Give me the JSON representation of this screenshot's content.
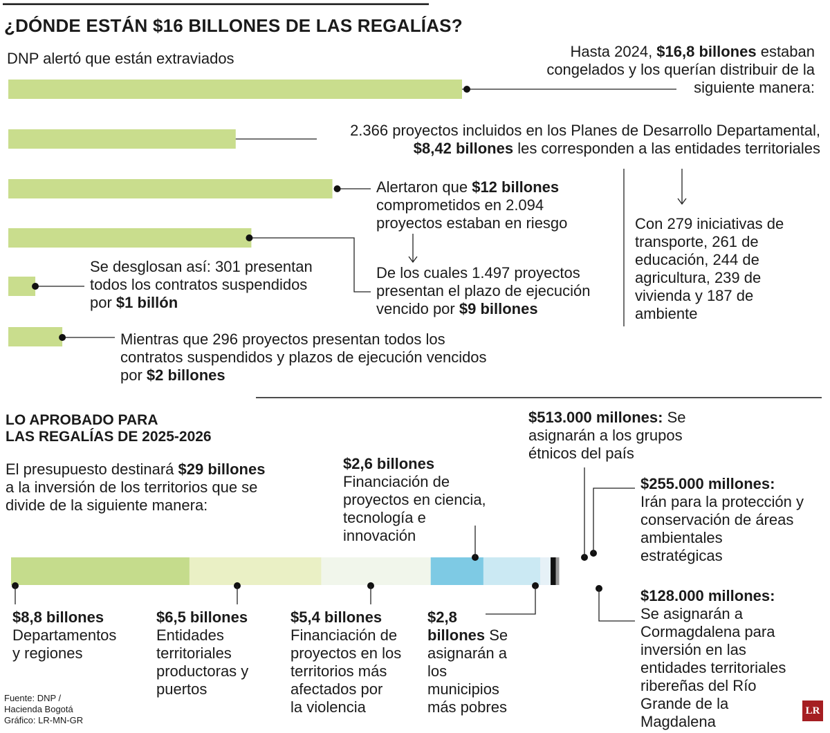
{
  "title": "¿DÓNDE ESTÁN $16 BILLONES DE LAS REGALÍAS?",
  "section1": {
    "subtitle": "DNP alertó que están extraviados",
    "bar_color": "#c9dd8d",
    "notes": {
      "congelados": [
        "Hasta 2024, ",
        "$16,8 billones",
        " estaban",
        "congelados y los querían distribuir de la",
        "siguiente manera:"
      ],
      "pdd": [
        "2.366 proyectos incluidos en los Planes de Desarrollo Departamental,",
        "$8,42 billones",
        " les corresponden a las entidades territoriales"
      ],
      "riesgo": [
        "Alertaron que ",
        "$12 billones",
        "comprometidos en 2.094",
        "proyectos estaban en riesgo"
      ],
      "vencido": [
        "De los cuales 1.497 proyectos",
        "presentan el plazo de ejecución",
        "vencido por ",
        "$9 billones"
      ],
      "suspendidos": [
        "Se desglosan así: 301 presentan",
        "todos los contratos suspendidos",
        "por ",
        "$1 billón"
      ],
      "ambos": [
        "Mientras que 296 proyectos presentan todos los",
        "contratos suspendidos y plazos de ejecución vencidos",
        "por ",
        "$2 billones"
      ],
      "iniciativas": [
        "Con 279 iniciativas de",
        "transporte, 261 de",
        "educación, 244 de",
        "agricultura, 239 de",
        "vivienda y 187 de",
        "ambiente"
      ]
    }
  },
  "section2": {
    "title_lines": [
      "LO APROBADO PARA",
      "LAS REGALÍAS DE 2025-2026"
    ],
    "intro": [
      "El presupuesto destinará ",
      "$29 billones",
      "a la inversión de los territorios que se",
      "divide de la siguiente manera:"
    ],
    "labels": {
      "dep": [
        "$8,8 billones",
        "Departamentos",
        "y regiones"
      ],
      "prod": [
        "$6,5 billones",
        "Entidades",
        "territoriales",
        "productoras y",
        "puertos"
      ],
      "viol": [
        "$5,4 billones",
        "Financiación de",
        "proyectos en los",
        "territorios más",
        "afectados por",
        "la violencia"
      ],
      "cti": [
        "$2,6 billones",
        "Financiación de",
        "proyectos en ciencia,",
        "tecnología e",
        "innovación"
      ],
      "mun": [
        "$2,8",
        "billones",
        " Se",
        "asignarán a",
        "los",
        "municipios",
        "más pobres"
      ],
      "etn": [
        "$513.000 millones:",
        " Se",
        "asignarán a los grupos",
        "étnicos del país"
      ],
      "amb": [
        "$255.000 millones:",
        "Irán para la protección y",
        "conservación de áreas",
        "ambientales",
        "estratégicas"
      ],
      "corm": [
        "$128.000 millones:",
        "Se asignarán a",
        "Cormagdalena para",
        "inversión en las",
        "entidades territoriales",
        "ribereñas del Río",
        "Grande de la",
        "Magdalena"
      ]
    }
  },
  "source": [
    "Fuente: DNP /",
    "Hacienda Bogotá",
    "Gráfico: LR-MN-GR"
  ],
  "logo": "LR",
  "chart_data": [
    {
      "type": "bar",
      "orientation": "horizontal",
      "unit": "billones de pesos",
      "categories": [
        "Congelados hasta 2024",
        "Planes de Desarrollo Departamental",
        "Proyectos en riesgo",
        "Plazo de ejecución vencido",
        "Contratos suspendidos",
        "Contratos suspendidos y plazos vencidos"
      ],
      "values": [
        16.8,
        8.42,
        12,
        9,
        1,
        2
      ],
      "color": "#c9dd8d"
    },
    {
      "type": "bar",
      "orientation": "horizontal-stacked",
      "unit": "billones de pesos",
      "total": 29,
      "categories": [
        "Departamentos y regiones",
        "Entidades territoriales productoras y puertos",
        "Territorios más afectados por la violencia",
        "Ciencia, tecnología e innovación",
        "Municipios más pobres",
        "Grupos étnicos",
        "Áreas ambientales estratégicas",
        "Cormagdalena"
      ],
      "values": [
        8.8,
        6.5,
        5.4,
        2.6,
        2.8,
        0.513,
        0.255,
        0.128
      ],
      "colors": [
        "#c5dc8c",
        "#eaf0c5",
        "#f1f6eb",
        "#7ecae4",
        "#cbe9f3",
        "#e6f1f7",
        "#111111",
        "#9a9a9a"
      ]
    }
  ]
}
